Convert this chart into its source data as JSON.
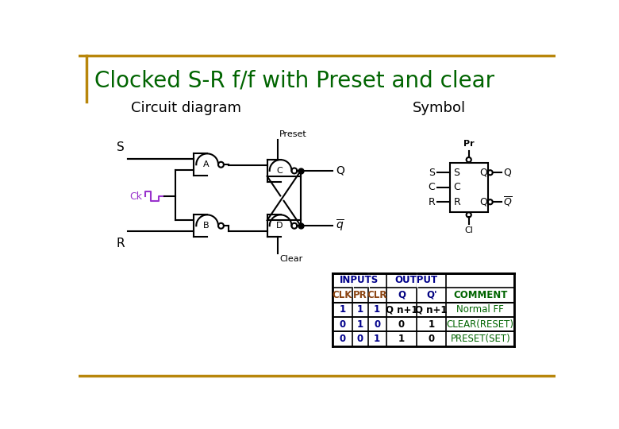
{
  "title": "Clocked S-R f/f with Preset and clear",
  "title_color": "#006400",
  "title_line_color": "#B8860B",
  "bg_color": "#ffffff",
  "subtitle_left": "Circuit diagram",
  "subtitle_right": "Symbol",
  "subtitle_color": "#000000",
  "table_rows": [
    [
      "1",
      "1",
      "1",
      "Q n+1",
      "Q n+1",
      "Normal FF"
    ],
    [
      "0",
      "1",
      "0",
      "0",
      "1",
      "CLEAR(RESET)"
    ],
    [
      "0",
      "0",
      "1",
      "1",
      "0",
      "PRESET(SET)"
    ]
  ],
  "wire_color": "#000000",
  "ck_color": "#9932CC",
  "title_fontsize": 20,
  "subtitle_fontsize": 13
}
